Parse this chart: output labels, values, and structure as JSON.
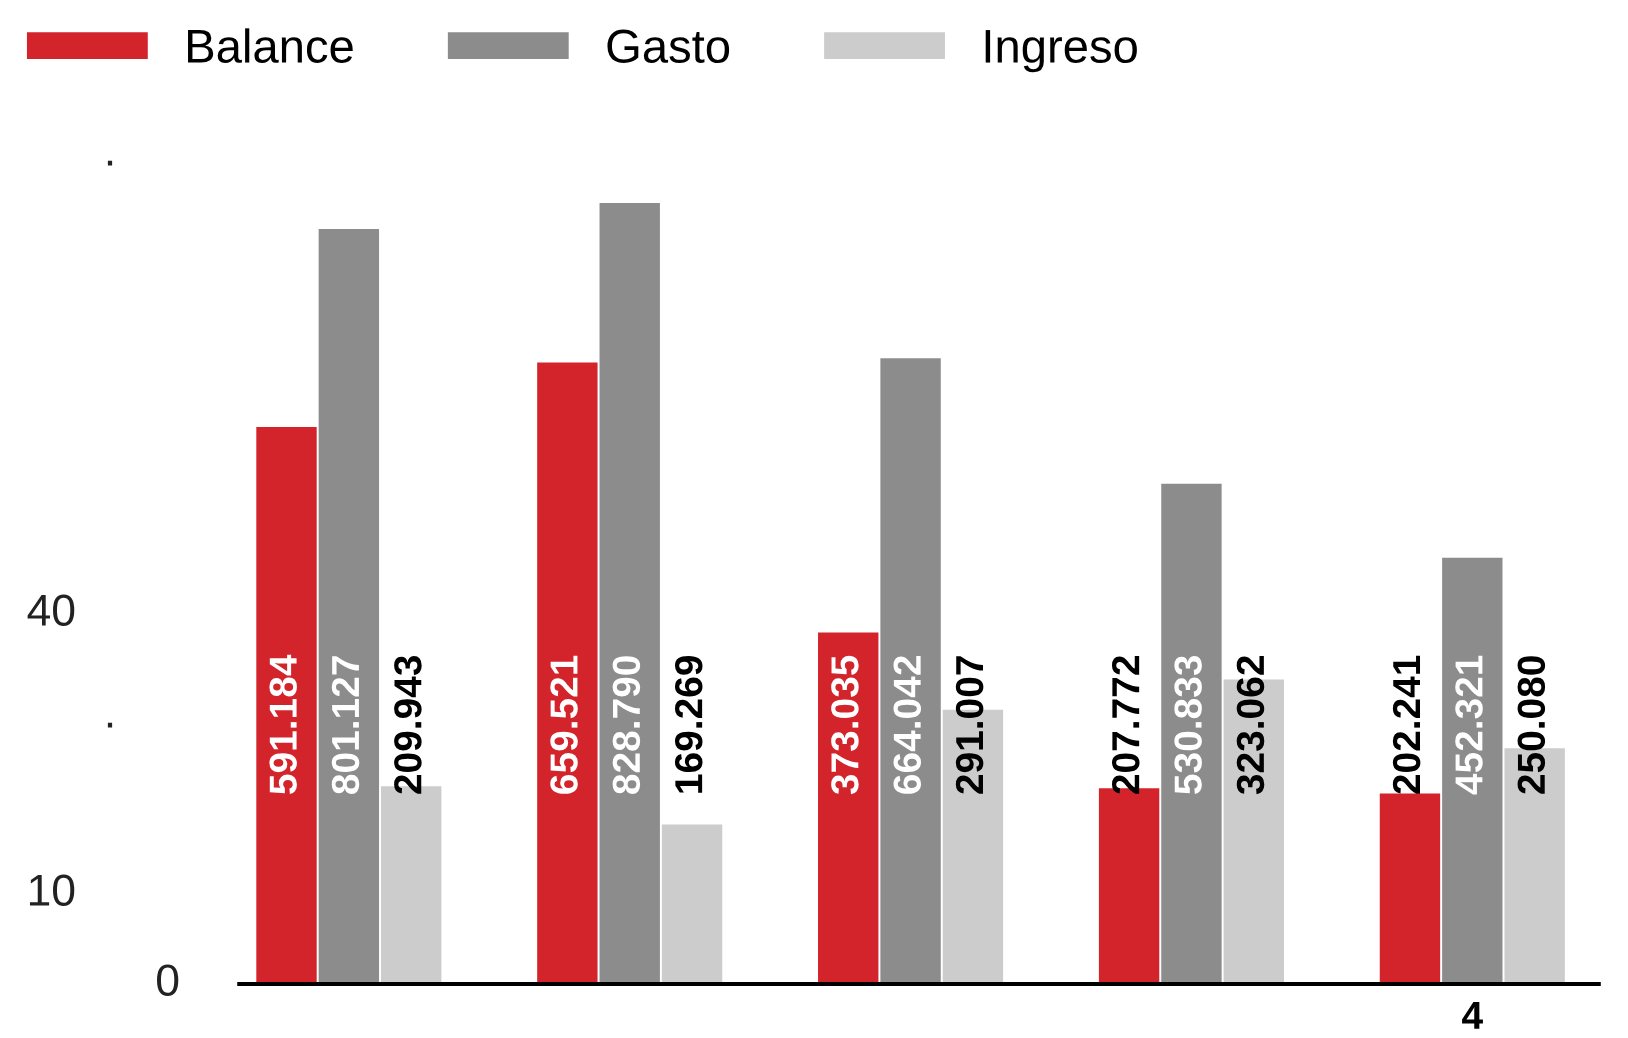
{
  "chart_data": {
    "type": "bar",
    "categories": [
      null,
      null,
      null,
      null,
      null
    ],
    "series": [
      {
        "name": "Balance",
        "color": "#d3242c",
        "values": [
          591.184,
          659.521,
          373.035,
          207.772,
          202.241
        ],
        "value_labels": [
          "591.184",
          "659.521",
          "373.035",
          "207.772",
          "202.241"
        ]
      },
      {
        "name": "Gasto",
        "color": "#8c8c8c",
        "values": [
          801.127,
          828.79,
          664.042,
          530.833,
          452.321
        ],
        "value_labels": [
          "801.127",
          "828.790",
          "664.042",
          "530.833",
          "452.321"
        ]
      },
      {
        "name": "Ingreso",
        "color": "#cccccc",
        "values": [
          209.943,
          169.269,
          291.007,
          323.062,
          250.08
        ],
        "value_labels": [
          "209.943",
          "169.269",
          "291.007",
          "323.062",
          "250.080"
        ]
      }
    ],
    "annotations": [
      ".",
      "40",
      ".",
      "10",
      "0",
      "4"
    ],
    "legend": "top left",
    "grid": false
  }
}
